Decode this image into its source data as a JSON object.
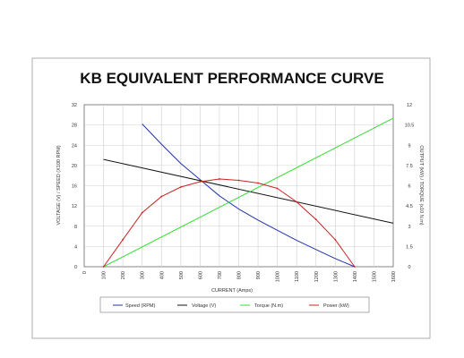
{
  "chart_data": {
    "type": "line",
    "title": "KB EQUIVALENT PERFORMANCE CURVE",
    "xlabel": "CURRENT (Amps)",
    "ylabel_left": "VOLTAGE (V) / SPEED (X100 RPM)",
    "ylabel_right": "OUTPUT (kW) / TORQUE (x10 N.m)",
    "x_ticks": [
      0,
      100,
      200,
      300,
      400,
      500,
      600,
      700,
      800,
      900,
      1000,
      1100,
      1200,
      1300,
      1400,
      1500,
      1600
    ],
    "x_tick_labels": [
      "0",
      "100",
      "200",
      "300",
      "400",
      "500",
      "600",
      "700",
      "800",
      "900",
      "1000",
      "1100",
      "1200",
      "1300",
      "1400",
      "1500",
      "1600"
    ],
    "xlim": [
      0,
      1600
    ],
    "ylim_left": [
      0,
      32
    ],
    "y_left_ticks": [
      0,
      4,
      8,
      12,
      16,
      20,
      24,
      28,
      32
    ],
    "y_left_tick_labels": [
      "0",
      "4",
      "8",
      "12",
      "16",
      "20",
      "24",
      "28",
      "32"
    ],
    "ylim_right": [
      0,
      12
    ],
    "y_right_ticks": [
      0,
      1.5,
      3,
      4.5,
      6,
      7.5,
      9,
      10.5,
      12
    ],
    "y_right_tick_labels": [
      "0",
      "1.5",
      "3",
      "4.5",
      "6",
      "7.5",
      "9",
      "10.5",
      "12"
    ],
    "grid": true,
    "legend_position": "bottom",
    "series": [
      {
        "name": "Speed (RPM)",
        "axis": "left",
        "color": "#2233aa",
        "x": [
          300,
          400,
          500,
          600,
          700,
          800,
          900,
          1000,
          1100,
          1200,
          1300,
          1400
        ],
        "y": [
          28.2,
          24.2,
          20.4,
          17.2,
          14.0,
          11.4,
          9.2,
          7.2,
          5.2,
          3.4,
          1.6,
          0
        ]
      },
      {
        "name": "Voltage (V)",
        "axis": "left",
        "color": "#111111",
        "x": [
          100,
          1600
        ],
        "y": [
          21.2,
          8.6
        ]
      },
      {
        "name": "Torque (N.m)",
        "axis": "right",
        "color": "#33dd33",
        "x": [
          100,
          1600
        ],
        "y": [
          0,
          11.0
        ]
      },
      {
        "name": "Power (kW)",
        "axis": "right",
        "color": "#cc2222",
        "x": [
          100,
          200,
          300,
          400,
          500,
          600,
          700,
          800,
          900,
          1000,
          1100,
          1200,
          1300,
          1400
        ],
        "y": [
          0,
          2.0,
          4.0,
          5.2,
          5.9,
          6.3,
          6.5,
          6.4,
          6.2,
          5.8,
          4.8,
          3.5,
          2.0,
          0
        ]
      }
    ]
  }
}
